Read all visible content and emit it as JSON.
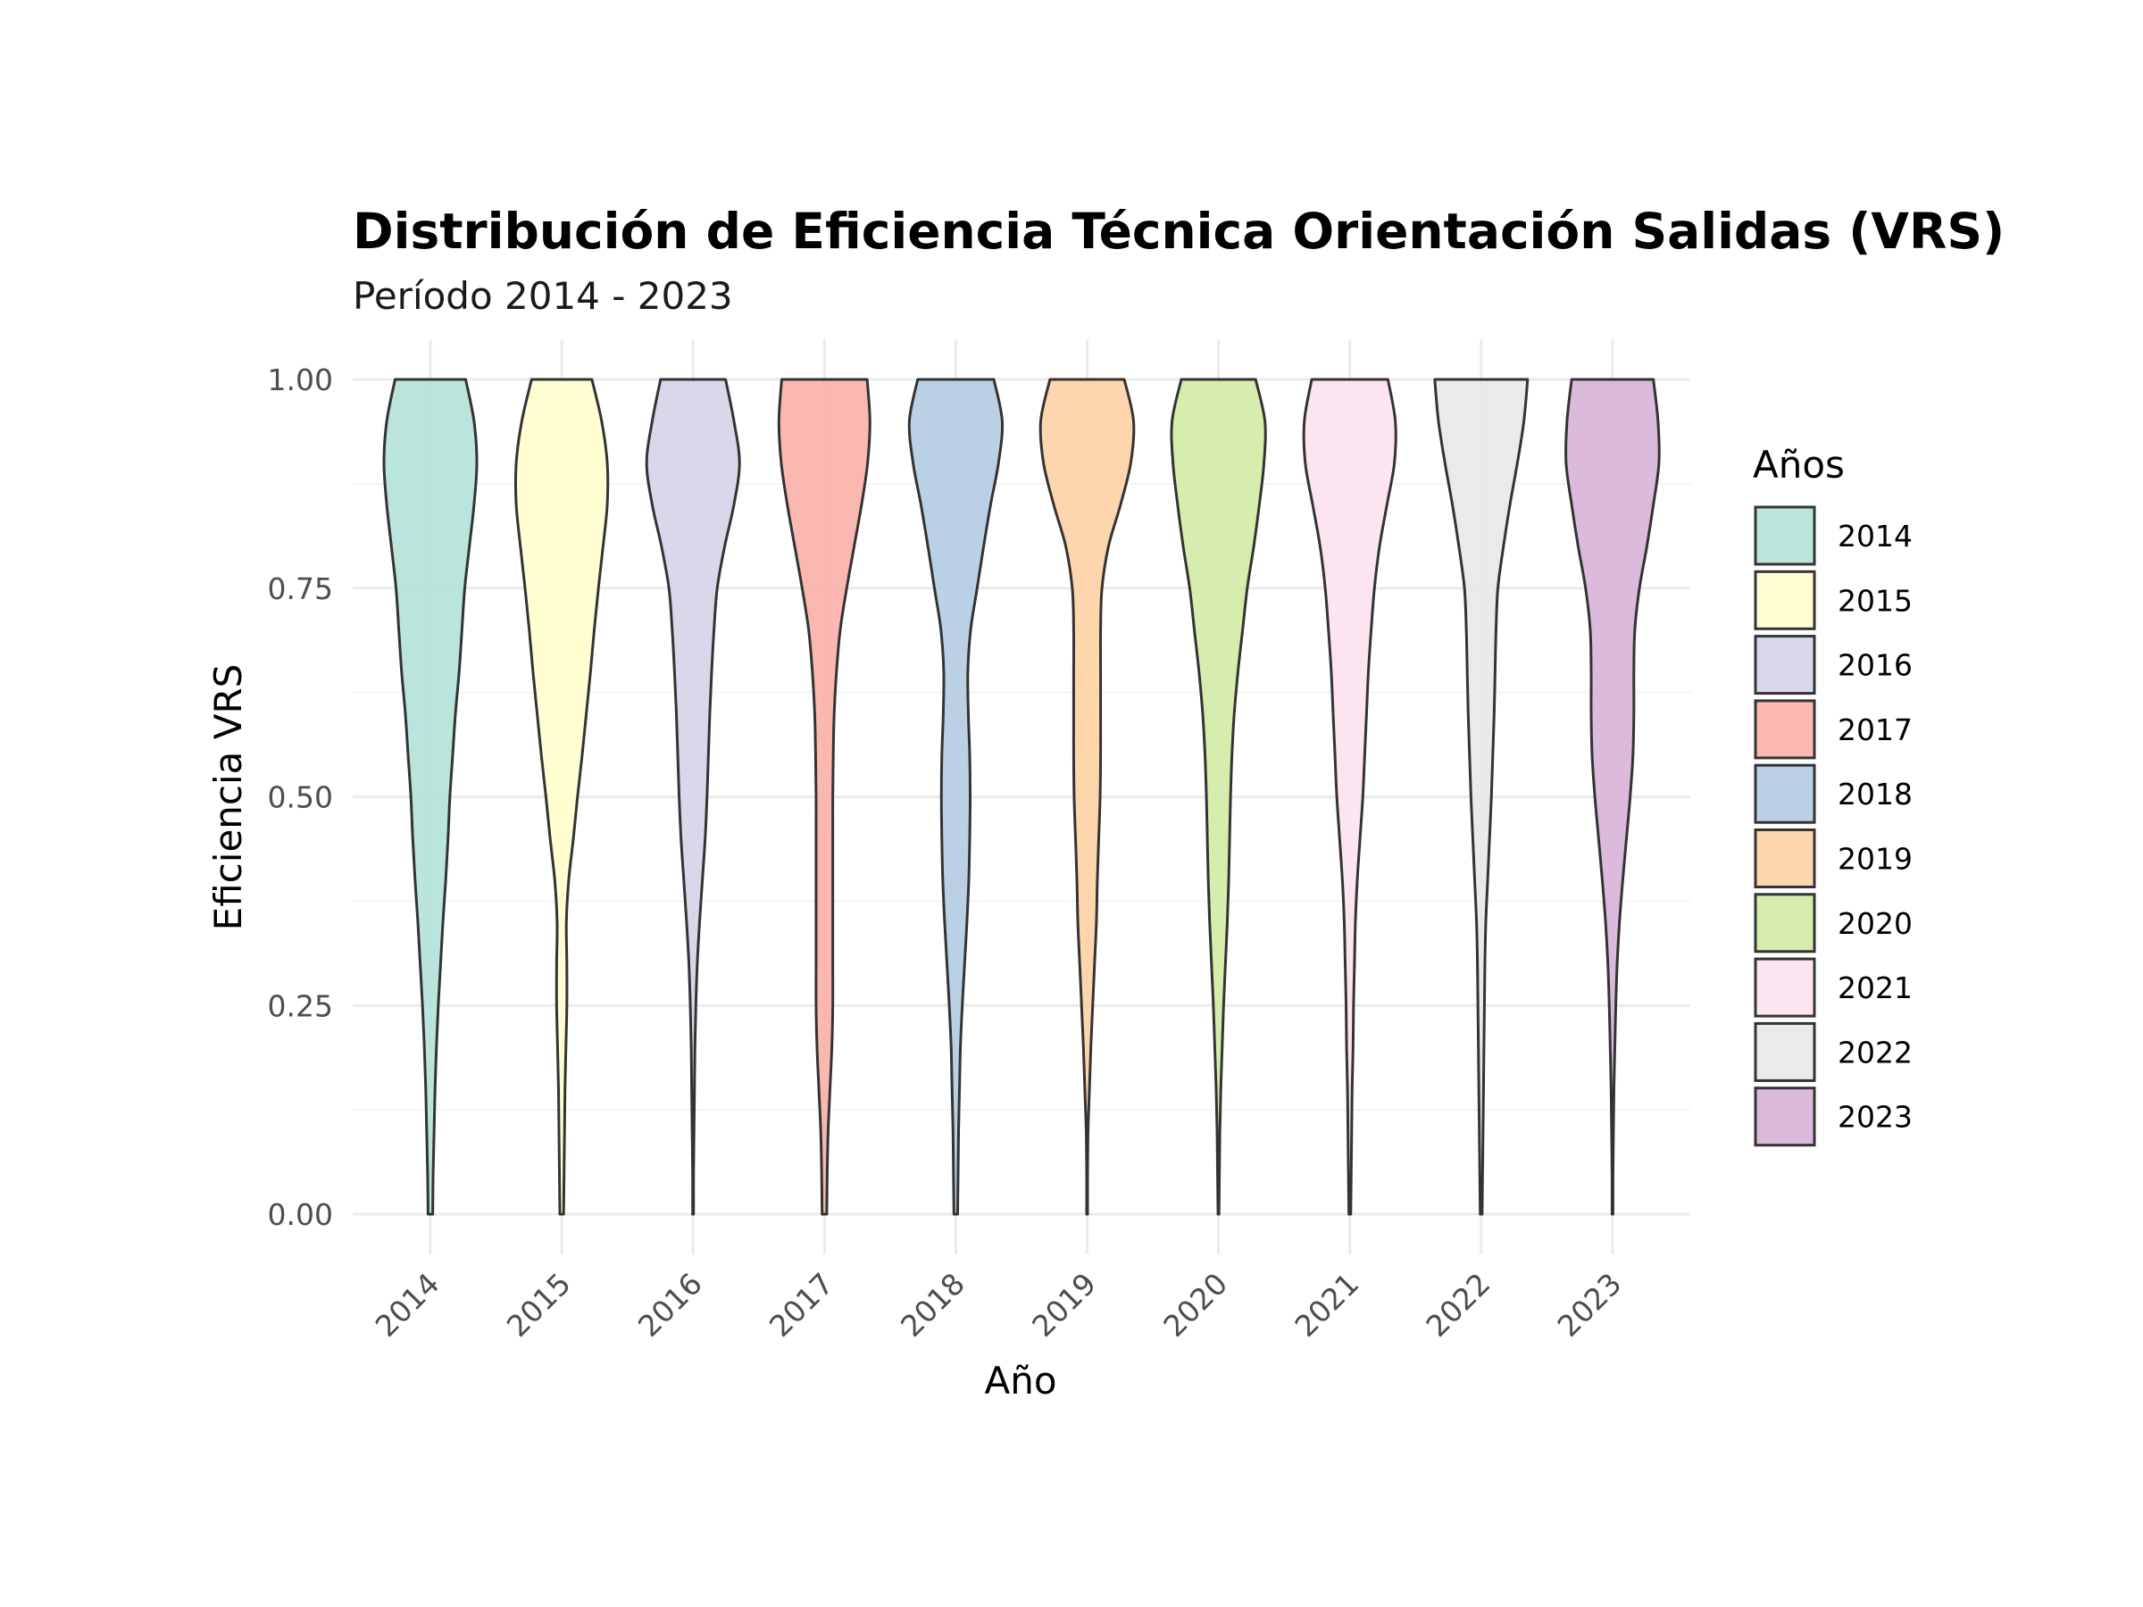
{
  "chart_data": {
    "type": "violin",
    "title": "Distribución de Eficiencia Técnica Orientación Salidas (VRS)",
    "subtitle": "Período 2014 - 2023",
    "xlabel": "Año",
    "ylabel": "Eficiencia VRS",
    "categories": [
      "2014",
      "2015",
      "2016",
      "2017",
      "2018",
      "2019",
      "2020",
      "2021",
      "2022",
      "2023"
    ],
    "ylim": [
      0,
      1
    ],
    "yticks": [
      0,
      0.25,
      0.5,
      0.75,
      1
    ],
    "ytick_labels": [
      "0.00",
      "0.25",
      "0.50",
      "0.75",
      "1.00"
    ],
    "grid": true,
    "legend": {
      "title": "Años",
      "placement": "right"
    },
    "density_grid_y": [
      0,
      0.05,
      0.1,
      0.15,
      0.2,
      0.25,
      0.3,
      0.35,
      0.4,
      0.45,
      0.5,
      0.55,
      0.6,
      0.65,
      0.7,
      0.75,
      0.8,
      0.85,
      0.9,
      0.95,
      1.0
    ],
    "series": [
      {
        "name": "2014",
        "color": "#B3E2D8",
        "density": [
          0.05,
          0.06,
          0.08,
          0.1,
          0.13,
          0.17,
          0.22,
          0.27,
          0.33,
          0.38,
          0.42,
          0.48,
          0.54,
          0.62,
          0.68,
          0.74,
          0.84,
          0.94,
          1.0,
          0.94,
          0.76
        ]
      },
      {
        "name": "2015",
        "color": "#FFFFCC",
        "density": [
          0.04,
          0.05,
          0.06,
          0.07,
          0.09,
          0.11,
          0.11,
          0.1,
          0.15,
          0.25,
          0.34,
          0.44,
          0.53,
          0.62,
          0.7,
          0.79,
          0.89,
          0.98,
          0.98,
          0.86,
          0.65
        ]
      },
      {
        "name": "2016",
        "color": "#D5D4E8",
        "density": [
          0.01,
          0.01,
          0.02,
          0.03,
          0.04,
          0.06,
          0.09,
          0.14,
          0.2,
          0.26,
          0.3,
          0.33,
          0.36,
          0.4,
          0.45,
          0.52,
          0.68,
          0.88,
          1.0,
          0.88,
          0.7
        ]
      },
      {
        "name": "2017",
        "color": "#FBB0A8",
        "density": [
          0.05,
          0.06,
          0.08,
          0.12,
          0.16,
          0.18,
          0.18,
          0.18,
          0.18,
          0.18,
          0.18,
          0.19,
          0.21,
          0.26,
          0.34,
          0.48,
          0.64,
          0.8,
          0.93,
          0.98,
          0.92
        ]
      },
      {
        "name": "2018",
        "color": "#B3CCE2",
        "density": [
          0.04,
          0.05,
          0.06,
          0.08,
          0.1,
          0.14,
          0.19,
          0.24,
          0.28,
          0.3,
          0.31,
          0.3,
          0.27,
          0.26,
          0.32,
          0.46,
          0.6,
          0.75,
          0.92,
          1.0,
          0.82
        ]
      },
      {
        "name": "2019",
        "color": "#FDD1A4",
        "density": [
          0.01,
          0.01,
          0.02,
          0.05,
          0.08,
          0.12,
          0.16,
          0.2,
          0.22,
          0.25,
          0.28,
          0.29,
          0.29,
          0.29,
          0.29,
          0.32,
          0.46,
          0.72,
          0.94,
          1.0,
          0.8
        ]
      },
      {
        "name": "2020",
        "color": "#D3EBA4",
        "density": [
          0.01,
          0.02,
          0.03,
          0.05,
          0.08,
          0.11,
          0.15,
          0.19,
          0.22,
          0.24,
          0.26,
          0.29,
          0.34,
          0.42,
          0.52,
          0.62,
          0.76,
          0.88,
          0.98,
          1.0,
          0.8
        ]
      },
      {
        "name": "2021",
        "color": "#FCE2EE",
        "density": [
          0.02,
          0.03,
          0.04,
          0.05,
          0.07,
          0.08,
          0.1,
          0.12,
          0.16,
          0.22,
          0.28,
          0.32,
          0.36,
          0.4,
          0.46,
          0.53,
          0.64,
          0.8,
          0.96,
          0.98,
          0.82
        ]
      },
      {
        "name": "2022",
        "color": "#E8E8E8",
        "density": [
          0.02,
          0.03,
          0.04,
          0.05,
          0.06,
          0.07,
          0.08,
          0.1,
          0.14,
          0.18,
          0.22,
          0.25,
          0.28,
          0.3,
          0.32,
          0.36,
          0.48,
          0.62,
          0.78,
          0.92,
          1.0
        ]
      },
      {
        "name": "2023",
        "color": "#D7B3D8",
        "density": [
          0.01,
          0.01,
          0.02,
          0.03,
          0.05,
          0.07,
          0.1,
          0.15,
          0.22,
          0.3,
          0.38,
          0.44,
          0.46,
          0.46,
          0.48,
          0.58,
          0.74,
          0.88,
          1.0,
          0.98,
          0.88
        ]
      }
    ]
  }
}
